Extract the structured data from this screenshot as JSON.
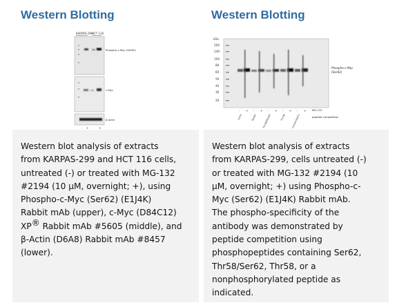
{
  "left": {
    "title": "Western Blotting",
    "blot": {
      "header_labels": [
        "KARPAS-299",
        "HCT 116"
      ],
      "lane_signs": [
        "-",
        "+",
        "-",
        "+"
      ],
      "labels": [
        "Phospho-c-Myc (Ser62)",
        "c-Myc",
        "β-Actin"
      ]
    },
    "caption_lines": [
      "Western blot analysis of extracts",
      "from KARPAS-299 and HCT 116 cells,",
      "untreated (-) or treated with MG-132",
      "#2194 (10 μM, overnight; +), using",
      "Phospho-c-Myc (Ser62) (E1J4K)",
      "Rabbit mAb (upper), c-Myc (D84C12)",
      "XP® Rabbit mAb #5605 (middle), and",
      "β-Actin (D6A8) Rabbit mAb #8457",
      "(lower)."
    ]
  },
  "right": {
    "title": "Western Blotting",
    "blot": {
      "unit_label": "kDa",
      "markers": [
        "200",
        "140",
        "100",
        "80",
        "60",
        "50",
        "40",
        "30",
        "20"
      ],
      "label_line1": "Phospho-c-Myc",
      "label_line2": "(Ser62)",
      "lane_signs": [
        "-",
        "+",
        "-",
        "+",
        "-",
        "+",
        "-",
        "+",
        "-",
        "+"
      ],
      "peptides": [
        "none",
        "Ser62",
        "Thr58/Ser62",
        "Thr58",
        "nonphospho"
      ],
      "row_labels": [
        "MG-132",
        "peptide competition"
      ]
    },
    "caption_lines": [
      "Western blot analysis of extracts",
      "from KARPAS-299, cells untreated (-)",
      "or treated with MG-132 #2194 (10",
      "μM, overnight; +) using Phospho-c-",
      "Myc (Ser62) (E1J4K) Rabbit mAb.",
      "The phospho-specificity of the",
      "antibody was demonstrated by",
      "peptide competition using",
      "phosphopeptides containing Ser62,",
      "Thr58/Ser62, Thr58, or a",
      "nonphosphorylated peptide as",
      "indicated."
    ]
  },
  "colors": {
    "title": "#2f6ba0",
    "caption_bg": "#f2f2f2"
  }
}
